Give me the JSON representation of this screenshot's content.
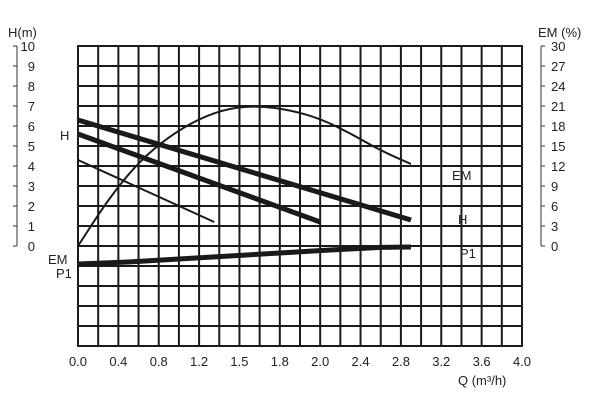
{
  "chart_data": {
    "type": "line",
    "xlabel": "Q (m³/h)",
    "ylabel_left": "H(m)",
    "ylabel_right": "EM (%)",
    "x_ticks": [
      "0.0",
      "0.4",
      "0.8",
      "1.2",
      "1.5",
      "1.8",
      "2.0",
      "2.4",
      "2.8",
      "3.2",
      "3.6",
      "4.0"
    ],
    "y_left_ticks": [
      "0",
      "1",
      "2",
      "3",
      "4",
      "5",
      "6",
      "7",
      "8",
      "9",
      "10"
    ],
    "y_right_ticks": [
      "0",
      "3",
      "6",
      "9",
      "12",
      "15",
      "18",
      "21",
      "24",
      "27",
      "30"
    ],
    "xlim": [
      0,
      4.0
    ],
    "ylim_left": [
      0,
      10
    ],
    "ylim_right": [
      0,
      30
    ],
    "grid": true,
    "series": [
      {
        "name": "H",
        "style": "thick",
        "color": "#1a1a1a",
        "x": [
          0.0,
          3.3
        ],
        "y": [
          6.3,
          1.3
        ]
      },
      {
        "name": "H",
        "style": "thick",
        "color": "#1a1a1a",
        "x": [
          0.0,
          2.4
        ],
        "y": [
          5.6,
          1.2
        ]
      },
      {
        "name": "",
        "style": "thin",
        "color": "#1a1a1a",
        "x": [
          0.0,
          1.35
        ],
        "y": [
          4.3,
          1.2
        ]
      },
      {
        "name": "EM",
        "style": "curve",
        "color": "#1a1a1a",
        "axis": "right",
        "x": [
          0.0,
          0.3,
          0.6,
          0.9,
          1.2,
          1.5,
          1.8,
          2.1,
          2.4,
          2.7,
          3.0,
          3.3
        ],
        "y": [
          0.0,
          7.0,
          12.6,
          16.4,
          19.1,
          20.7,
          21.0,
          20.4,
          19.1,
          16.9,
          14.3,
          12.3
        ]
      },
      {
        "name": "P1",
        "style": "thick",
        "color": "#1a1a1a",
        "x": [
          0.0,
          0.5,
          1.0,
          1.5,
          2.0,
          2.5,
          3.0,
          3.3
        ],
        "y": [
          -0.9,
          -0.8,
          -0.65,
          -0.5,
          -0.35,
          -0.2,
          -0.07,
          -0.05
        ]
      }
    ],
    "labels": [
      {
        "text": "H",
        "side": "left"
      },
      {
        "text": "EM",
        "side": "left"
      },
      {
        "text": "P1",
        "side": "left"
      },
      {
        "text": "EM",
        "side": "right"
      },
      {
        "text": "H",
        "side": "right"
      },
      {
        "text": "P1",
        "side": "right"
      }
    ]
  }
}
